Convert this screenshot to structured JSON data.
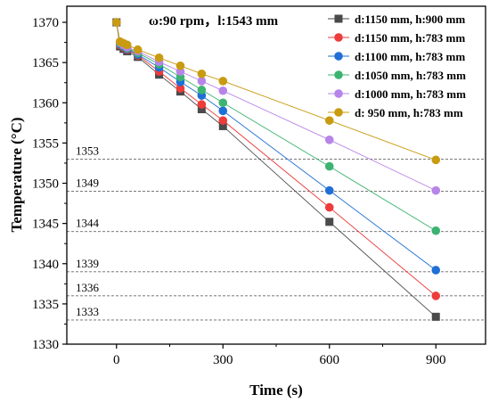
{
  "chart_data": {
    "type": "line",
    "title": "",
    "annotation": "ω:90 rpm，l:1543 mm",
    "xlabel": "Time (s)",
    "ylabel": "Temperature (°C)",
    "xlim": [
      -140,
      1040
    ],
    "ylim": [
      1330,
      1372
    ],
    "xticks": [
      0,
      300,
      600,
      900
    ],
    "yticks": [
      1330,
      1335,
      1340,
      1345,
      1350,
      1355,
      1360,
      1365,
      1370
    ],
    "reference_lines": [
      {
        "value": 1353,
        "label": "1353"
      },
      {
        "value": 1349,
        "label": "1349"
      },
      {
        "value": 1344,
        "label": "1344"
      },
      {
        "value": 1339,
        "label": "1339"
      },
      {
        "value": 1336,
        "label": "1336"
      },
      {
        "value": 1333,
        "label": "1333"
      }
    ],
    "legend_position": "top-right",
    "series": [
      {
        "name": "d:1150 mm, h:900 mm",
        "color": "#4a4a4a",
        "marker": "square",
        "x": [
          0,
          10,
          20,
          30,
          60,
          120,
          180,
          240,
          300,
          600,
          900
        ],
        "y": [
          1370,
          1367,
          1366.7,
          1366.4,
          1365.7,
          1363.5,
          1361.4,
          1359.2,
          1357.1,
          1345.2,
          1333.4
        ]
      },
      {
        "name": "d:1150 mm, h:783 mm",
        "color": "#ee3b3b",
        "marker": "circle",
        "x": [
          0,
          10,
          20,
          30,
          60,
          120,
          180,
          240,
          300,
          600,
          900
        ],
        "y": [
          1370,
          1367.2,
          1366.9,
          1366.6,
          1365.9,
          1363.9,
          1361.8,
          1359.8,
          1357.8,
          1347.0,
          1336.0
        ]
      },
      {
        "name": "d:1100 mm, h:783 mm",
        "color": "#1f6fd6",
        "marker": "circle",
        "x": [
          0,
          10,
          20,
          30,
          60,
          120,
          180,
          240,
          300,
          600,
          900
        ],
        "y": [
          1370,
          1367.3,
          1367.0,
          1366.7,
          1366.0,
          1364.4,
          1362.6,
          1360.9,
          1359.0,
          1349.1,
          1339.2
        ]
      },
      {
        "name": "d:1050 mm, h:783 mm",
        "color": "#3cb371",
        "marker": "circle",
        "x": [
          0,
          10,
          20,
          30,
          60,
          120,
          180,
          240,
          300,
          600,
          900
        ],
        "y": [
          1370,
          1367.4,
          1367.1,
          1366.8,
          1366.2,
          1364.8,
          1363.2,
          1361.6,
          1360.0,
          1352.1,
          1344.1
        ]
      },
      {
        "name": "d:1000 mm, h:783 mm",
        "color": "#b784e8",
        "marker": "circle",
        "x": [
          0,
          10,
          20,
          30,
          60,
          120,
          180,
          240,
          300,
          600,
          900
        ],
        "y": [
          1370,
          1367.5,
          1367.2,
          1366.9,
          1366.4,
          1365.1,
          1363.9,
          1362.7,
          1361.5,
          1355.4,
          1349.1
        ]
      },
      {
        "name": "d: 950 mm, h:783 mm",
        "color": "#c89b10",
        "marker": "circle",
        "x": [
          0,
          10,
          20,
          30,
          60,
          120,
          180,
          240,
          300,
          600,
          900
        ],
        "y": [
          1370,
          1367.6,
          1367.4,
          1367.2,
          1366.6,
          1365.6,
          1364.6,
          1363.6,
          1362.7,
          1357.8,
          1352.9
        ]
      }
    ]
  }
}
